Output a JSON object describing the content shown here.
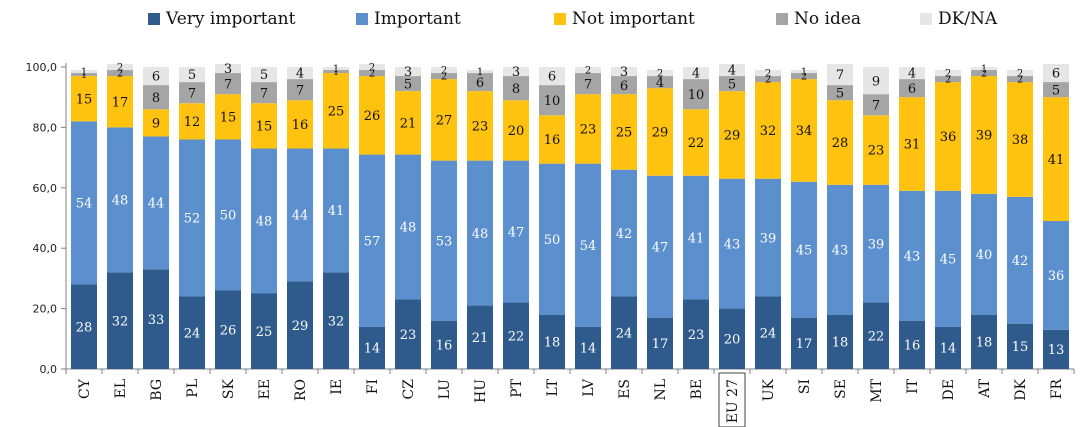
{
  "chart_data": {
    "type": "bar",
    "stacked": true,
    "categories": [
      "CY",
      "EL",
      "BG",
      "PL",
      "SK",
      "EE",
      "RO",
      "IE",
      "FI",
      "CZ",
      "LU",
      "HU",
      "PT",
      "LT",
      "LV",
      "ES",
      "NL",
      "BE",
      "EU27",
      "UK",
      "SI",
      "SE",
      "MT",
      "IT",
      "DE",
      "AT",
      "DK",
      "FR"
    ],
    "category_labels": [
      "CY",
      "EL",
      "BG",
      "PL",
      "SK",
      "EE",
      "RO",
      "IE",
      "FI",
      "CZ",
      "LU",
      "HU",
      "PT",
      "LT",
      "LV",
      "ES",
      "NL",
      "BE",
      "EU 27",
      "UK",
      "SI",
      "SE",
      "MT",
      "IT",
      "DE",
      "AT",
      "DK",
      "FR"
    ],
    "highlighted_category": "EU27",
    "series": [
      {
        "name": "Very important",
        "color": "#2e5a8c",
        "label_color": "#ffffff",
        "values": [
          28,
          32,
          33,
          24,
          26,
          25,
          29,
          32,
          14,
          23,
          16,
          21,
          22,
          18,
          14,
          24,
          17,
          23,
          20,
          24,
          17,
          18,
          22,
          16,
          14,
          18,
          15,
          13
        ]
      },
      {
        "name": "Important",
        "color": "#5b8fcd",
        "label_color": "#ffffff",
        "values": [
          54,
          48,
          44,
          52,
          50,
          48,
          44,
          41,
          57,
          48,
          53,
          48,
          47,
          50,
          54,
          42,
          47,
          41,
          43,
          39,
          45,
          43,
          39,
          43,
          45,
          40,
          42,
          36
        ]
      },
      {
        "name": "Not important",
        "color": "#ffc20e",
        "label_color": "#111111",
        "values": [
          15,
          17,
          9,
          12,
          15,
          15,
          16,
          25,
          26,
          21,
          27,
          23,
          20,
          16,
          23,
          25,
          29,
          22,
          29,
          32,
          34,
          28,
          23,
          31,
          36,
          39,
          38,
          41
        ]
      },
      {
        "name": "No idea",
        "color": "#a5a5a5",
        "label_color": "#111111",
        "values": [
          1,
          2,
          8,
          7,
          7,
          7,
          7,
          1,
          2,
          5,
          2,
          6,
          8,
          10,
          7,
          6,
          4,
          10,
          5,
          2,
          2,
          5,
          7,
          6,
          2,
          2,
          2,
          5
        ]
      },
      {
        "name": "DK/NA",
        "color": "#e6e6e6",
        "label_color": "#111111",
        "values": [
          1,
          2,
          6,
          5,
          3,
          5,
          4,
          1,
          2,
          3,
          2,
          1,
          3,
          6,
          2,
          3,
          2,
          4,
          4,
          2,
          1,
          7,
          9,
          4,
          2,
          1,
          2,
          6
        ]
      }
    ],
    "ylim": [
      0,
      100
    ],
    "yticks": [
      "0,0",
      "20,0",
      "40,0",
      "60,0",
      "80,0",
      "100,0"
    ],
    "grid": false,
    "legend_position": "top",
    "xlabel": "",
    "ylabel": ""
  }
}
